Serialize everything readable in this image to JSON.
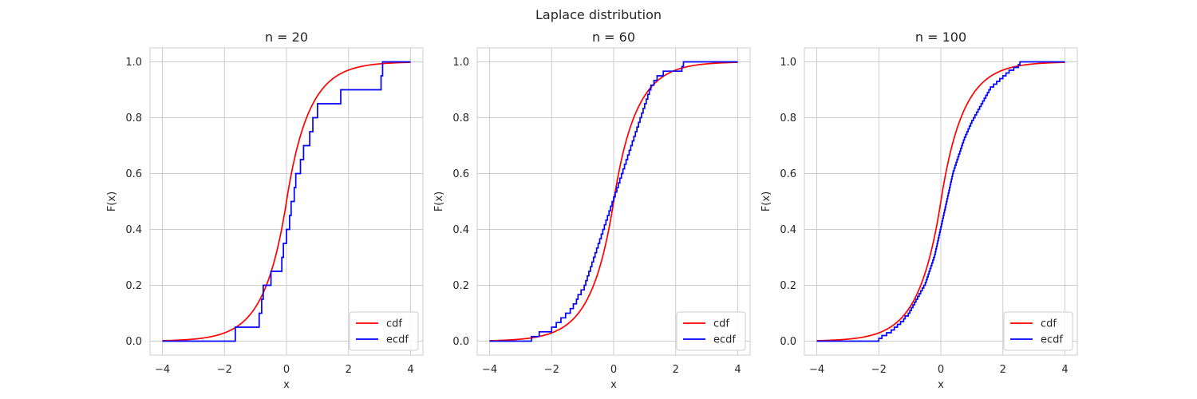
{
  "figure": {
    "title": "Laplace distribution",
    "xlabel": "x",
    "ylabel": "F(x)"
  },
  "chart_data": [
    {
      "type": "line",
      "title": "n = 20",
      "xlabel": "x",
      "ylabel": "F(x)",
      "xlim": [
        -4.4,
        4.4
      ],
      "ylim": [
        -0.05,
        1.05
      ],
      "xticks": [
        -4,
        -2,
        0,
        2,
        4
      ],
      "xtick_labels": [
        "−4",
        "−2",
        "0",
        "2",
        "4"
      ],
      "yticks": [
        0.0,
        0.2,
        0.4,
        0.6,
        0.8,
        1.0
      ],
      "ytick_labels": [
        "0.0",
        "0.2",
        "0.4",
        "0.6",
        "0.8",
        "1.0"
      ],
      "grid": true,
      "legend": "lower right",
      "series": [
        {
          "name": "cdf",
          "kind": "laplace-cdf",
          "loc": 0,
          "scale": 0.7071,
          "x_range": [
            -4,
            4
          ],
          "color": "#ff0000"
        },
        {
          "name": "ecdf",
          "kind": "step",
          "x_range": [
            -4,
            4
          ],
          "color": "#0000ff",
          "samples": [
            -1.65,
            -0.88,
            -0.8,
            -0.75,
            -0.5,
            -0.15,
            -0.1,
            0.0,
            0.1,
            0.15,
            0.25,
            0.3,
            0.45,
            0.55,
            0.75,
            0.85,
            1.0,
            1.75,
            3.05,
            3.1
          ]
        }
      ]
    },
    {
      "type": "line",
      "title": "n = 60",
      "xlabel": "x",
      "ylabel": "F(x)",
      "xlim": [
        -4.4,
        4.4
      ],
      "ylim": [
        -0.05,
        1.05
      ],
      "xticks": [
        -4,
        -2,
        0,
        2,
        4
      ],
      "xtick_labels": [
        "−4",
        "−2",
        "0",
        "2",
        "4"
      ],
      "yticks": [
        0.0,
        0.2,
        0.4,
        0.6,
        0.8,
        1.0
      ],
      "ytick_labels": [
        "0.0",
        "0.2",
        "0.4",
        "0.6",
        "0.8",
        "1.0"
      ],
      "grid": true,
      "legend": "lower right",
      "series": [
        {
          "name": "cdf",
          "kind": "laplace-cdf",
          "loc": 0,
          "scale": 0.7071,
          "x_range": [
            -4,
            4
          ],
          "color": "#ff0000"
        },
        {
          "name": "ecdf",
          "kind": "step",
          "x_range": [
            -4,
            4
          ],
          "color": "#0000ff",
          "samples": [
            -2.65,
            -2.4,
            -2.0,
            -1.85,
            -1.7,
            -1.55,
            -1.4,
            -1.3,
            -1.2,
            -1.15,
            -1.05,
            -0.95,
            -0.9,
            -0.85,
            -0.8,
            -0.75,
            -0.7,
            -0.65,
            -0.6,
            -0.55,
            -0.5,
            -0.45,
            -0.4,
            -0.35,
            -0.3,
            -0.25,
            -0.2,
            -0.15,
            -0.1,
            -0.05,
            0.0,
            0.05,
            0.1,
            0.15,
            0.2,
            0.25,
            0.3,
            0.35,
            0.4,
            0.45,
            0.5,
            0.55,
            0.6,
            0.65,
            0.7,
            0.75,
            0.8,
            0.85,
            0.9,
            0.95,
            1.0,
            1.05,
            1.1,
            1.15,
            1.2,
            1.3,
            1.4,
            1.6,
            2.2,
            2.25
          ]
        }
      ]
    },
    {
      "type": "line",
      "title": "n = 100",
      "xlabel": "x",
      "ylabel": "F(x)",
      "xlim": [
        -4.4,
        4.4
      ],
      "ylim": [
        -0.05,
        1.05
      ],
      "xticks": [
        -4,
        -2,
        0,
        2,
        4
      ],
      "xtick_labels": [
        "−4",
        "−2",
        "0",
        "2",
        "4"
      ],
      "yticks": [
        0.0,
        0.2,
        0.4,
        0.6,
        0.8,
        1.0
      ],
      "ytick_labels": [
        "0.0",
        "0.2",
        "0.4",
        "0.6",
        "0.8",
        "1.0"
      ],
      "grid": true,
      "legend": "lower right",
      "series": [
        {
          "name": "cdf",
          "kind": "laplace-cdf",
          "loc": 0,
          "scale": 0.7071,
          "x_range": [
            -4,
            4
          ],
          "color": "#ff0000"
        },
        {
          "name": "ecdf",
          "kind": "step",
          "x_range": [
            -4,
            4
          ],
          "color": "#0000ff",
          "samples": [
            -2.0,
            -1.9,
            -1.75,
            -1.6,
            -1.5,
            -1.4,
            -1.3,
            -1.2,
            -1.15,
            -1.05,
            -1.0,
            -0.95,
            -0.9,
            -0.85,
            -0.8,
            -0.75,
            -0.7,
            -0.65,
            -0.6,
            -0.55,
            -0.5,
            -0.47,
            -0.44,
            -0.41,
            -0.38,
            -0.35,
            -0.32,
            -0.29,
            -0.26,
            -0.23,
            -0.2,
            -0.18,
            -0.16,
            -0.14,
            -0.12,
            -0.1,
            -0.08,
            -0.06,
            -0.04,
            -0.02,
            0.0,
            0.02,
            0.04,
            0.06,
            0.08,
            0.1,
            0.12,
            0.14,
            0.16,
            0.18,
            0.2,
            0.22,
            0.24,
            0.26,
            0.28,
            0.3,
            0.32,
            0.34,
            0.36,
            0.38,
            0.4,
            0.43,
            0.46,
            0.49,
            0.52,
            0.55,
            0.58,
            0.61,
            0.64,
            0.67,
            0.7,
            0.73,
            0.76,
            0.8,
            0.84,
            0.88,
            0.92,
            0.96,
            1.0,
            1.05,
            1.1,
            1.15,
            1.2,
            1.25,
            1.3,
            1.35,
            1.4,
            1.45,
            1.5,
            1.55,
            1.6,
            1.7,
            1.8,
            1.9,
            2.0,
            2.1,
            2.2,
            2.35,
            2.5,
            2.55
          ]
        }
      ]
    }
  ]
}
